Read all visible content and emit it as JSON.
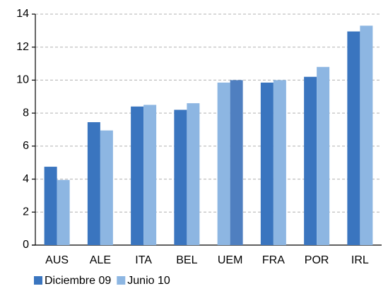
{
  "chart_data": {
    "type": "bar",
    "categories": [
      "AUS",
      "ALE",
      "ITA",
      "BEL",
      "UEM",
      "FRA",
      "POR",
      "IRL"
    ],
    "series": [
      {
        "name": "Diciembre 09",
        "color": "#3a75bf",
        "values": [
          4.75,
          7.45,
          8.4,
          8.2,
          9.85,
          9.85,
          10.2,
          12.95
        ],
        "colors": [
          "#3a75bf",
          "#3a75bf",
          "#3a75bf",
          "#3a75bf",
          "#8db6e2",
          "#3a75bf",
          "#3a75bf",
          "#3a75bf"
        ]
      },
      {
        "name": "Junio 10",
        "color": "#8db6e2",
        "values": [
          3.95,
          6.95,
          8.5,
          8.6,
          10.0,
          10.0,
          10.8,
          13.3
        ],
        "colors": [
          "#8db6e2",
          "#8db6e2",
          "#8db6e2",
          "#8db6e2",
          "#4f7fc0",
          "#8db6e2",
          "#8db6e2",
          "#8db6e2"
        ]
      }
    ],
    "ylim": [
      0,
      14
    ],
    "yticks": [
      0,
      2,
      4,
      6,
      8,
      10,
      12,
      14
    ],
    "grid": true
  }
}
